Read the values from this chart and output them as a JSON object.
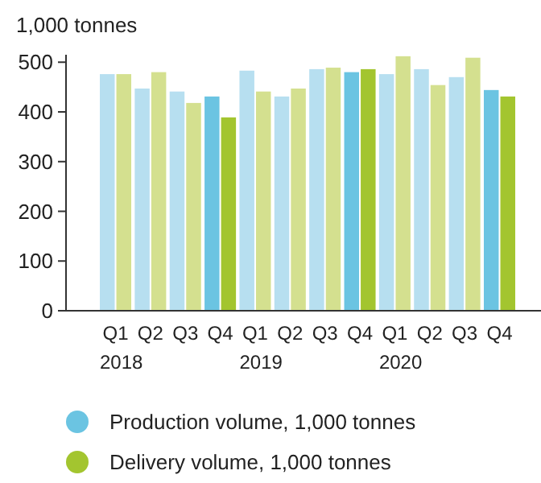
{
  "chart_data": {
    "type": "bar",
    "ylabel": "1,000 tonnes",
    "categories": [
      "Q1\n2018",
      "Q2",
      "Q3",
      "Q4",
      "Q1\n2019",
      "Q2",
      "Q3",
      "Q4",
      "Q1\n2020",
      "Q2",
      "Q3",
      "Q4"
    ],
    "series": [
      {
        "name": "Production volume, 1,000 tonnes",
        "color": "#6bc4e2",
        "colors": [
          "#b7dff0",
          "#b7dff0",
          "#b7dff0",
          "#6bc4e2",
          "#b7dff0",
          "#b7dff0",
          "#b7dff0",
          "#6bc4e2",
          "#b7dff0",
          "#b7dff0",
          "#b7dff0",
          "#6bc4e2"
        ],
        "values": [
          476,
          447,
          441,
          431,
          483,
          431,
          486,
          480,
          476,
          486,
          470,
          444
        ]
      },
      {
        "name": "Delivery volume, 1,000 tonnes",
        "color": "#a3c52f",
        "colors": [
          "#d4e08f",
          "#d4e08f",
          "#d4e08f",
          "#a3c52f",
          "#d4e08f",
          "#d4e08f",
          "#d4e08f",
          "#a3c52f",
          "#d4e08f",
          "#d4e08f",
          "#d4e08f",
          "#a3c52f"
        ],
        "values": [
          476,
          480,
          418,
          389,
          441,
          447,
          489,
          486,
          512,
          454,
          509,
          431
        ]
      }
    ],
    "ylim": [
      0,
      515
    ],
    "yticks": [
      0,
      100,
      200,
      300,
      400,
      500
    ],
    "grid": false,
    "legend": "bottom"
  }
}
